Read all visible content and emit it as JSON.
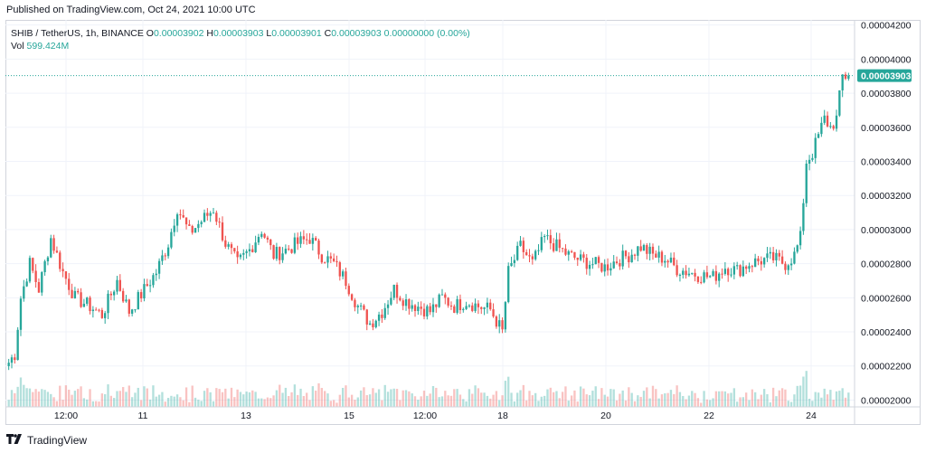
{
  "header": {
    "published": "Published on TradingView.com, Oct 24, 2021 10:00 UTC"
  },
  "legend": {
    "symbol": "SHIB / TetherUS, 1h, BINANCE",
    "o_label": "O",
    "o_value": "0.00003902",
    "h_label": "H",
    "h_value": "0.00003903",
    "l_label": "L",
    "l_value": "0.00003901",
    "c_label": "C",
    "c_value": "0.00003903",
    "change": "0.00000000 (0.00%)",
    "vol_label": "Vol",
    "vol_value": "599.424M"
  },
  "brand": {
    "name": "TradingView"
  },
  "colors": {
    "up": "#26a69a",
    "down": "#ef5350",
    "grid": "#f0f3fa",
    "last_price": "#26a69a"
  },
  "chart_data": {
    "type": "candlestick",
    "symbol": "SHIB / TetherUS",
    "interval": "1h",
    "exchange": "BINANCE",
    "y_ticks": [
      "0.00004200",
      "0.00004000",
      "0.00003800",
      "0.00003600",
      "0.00003400",
      "0.00003200",
      "0.00003000",
      "0.00002800",
      "0.00002600",
      "0.00002400",
      "0.00002200",
      "0.00002000"
    ],
    "ylim": [
      1.96e-05,
      4.23e-05
    ],
    "x_ticks": [
      "12:00",
      "11",
      "13",
      "15",
      "12:00",
      "18",
      "20",
      "22",
      "24"
    ],
    "last_price": "0.00003903",
    "close_path": [
      [
        0,
        2.22e-05
      ],
      [
        2,
        2.27e-05
      ],
      [
        4,
        2.6e-05
      ],
      [
        7,
        2.8e-05
      ],
      [
        10,
        2.65e-05
      ],
      [
        14,
        2.95e-05
      ],
      [
        18,
        2.75e-05
      ],
      [
        22,
        2.6e-05
      ],
      [
        27,
        2.55e-05
      ],
      [
        31,
        2.5e-05
      ],
      [
        36,
        2.7e-05
      ],
      [
        40,
        2.52e-05
      ],
      [
        44,
        2.62e-05
      ],
      [
        49,
        2.75e-05
      ],
      [
        53,
        2.92e-05
      ],
      [
        56,
        3.13e-05
      ],
      [
        60,
        2.98e-05
      ],
      [
        64,
        3.05e-05
      ],
      [
        68,
        3.12e-05
      ],
      [
        72,
        2.92e-05
      ],
      [
        76,
        2.8e-05
      ],
      [
        80,
        2.88e-05
      ],
      [
        84,
        3e-05
      ],
      [
        88,
        2.85e-05
      ],
      [
        92,
        2.88e-05
      ],
      [
        96,
        2.92e-05
      ],
      [
        100,
        2.95e-05
      ],
      [
        104,
        2.85e-05
      ],
      [
        108,
        2.8e-05
      ],
      [
        112,
        2.7e-05
      ],
      [
        116,
        2.55e-05
      ],
      [
        120,
        2.45e-05
      ],
      [
        124,
        2.52e-05
      ],
      [
        128,
        2.65e-05
      ],
      [
        132,
        2.58e-05
      ],
      [
        136,
        2.55e-05
      ],
      [
        140,
        2.52e-05
      ],
      [
        144,
        2.6e-05
      ],
      [
        148,
        2.55e-05
      ],
      [
        152,
        2.58e-05
      ],
      [
        156,
        2.55e-05
      ],
      [
        160,
        2.53e-05
      ],
      [
        164,
        2.4e-05
      ],
      [
        166,
        2.75e-05
      ],
      [
        170,
        2.9e-05
      ],
      [
        174,
        2.8e-05
      ],
      [
        178,
        2.95e-05
      ],
      [
        182,
        2.9e-05
      ],
      [
        186,
        2.85e-05
      ],
      [
        190,
        2.82e-05
      ],
      [
        194,
        2.8e-05
      ],
      [
        198,
        2.78e-05
      ],
      [
        202,
        2.82e-05
      ],
      [
        206,
        2.85e-05
      ],
      [
        210,
        2.9e-05
      ],
      [
        214,
        2.85e-05
      ],
      [
        218,
        2.83e-05
      ],
      [
        222,
        2.77e-05
      ],
      [
        226,
        2.75e-05
      ],
      [
        230,
        2.73e-05
      ],
      [
        234,
        2.72e-05
      ],
      [
        238,
        2.78e-05
      ],
      [
        242,
        2.76e-05
      ],
      [
        246,
        2.8e-05
      ],
      [
        250,
        2.82e-05
      ],
      [
        254,
        2.83e-05
      ],
      [
        258,
        2.8e-05
      ],
      [
        261,
        2.85e-05
      ],
      [
        263,
        2.95e-05
      ],
      [
        265,
        3.4e-05
      ],
      [
        267,
        3.45e-05
      ],
      [
        269,
        3.55e-05
      ],
      [
        271,
        3.65e-05
      ],
      [
        273,
        3.6e-05
      ],
      [
        275,
        3.65e-05
      ],
      [
        277,
        3.9e-05
      ],
      [
        279,
        3.9e-05
      ]
    ]
  }
}
